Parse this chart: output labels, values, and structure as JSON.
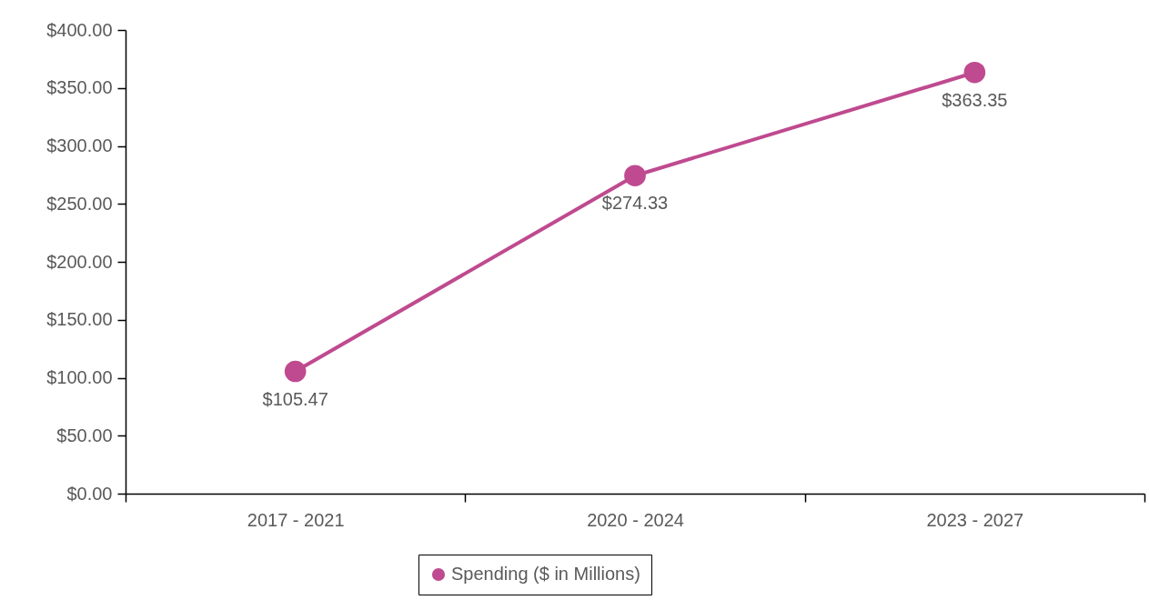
{
  "chart_data": {
    "type": "line",
    "categories": [
      "2017 - 2021",
      "2020 - 2024",
      "2023 - 2027"
    ],
    "series": [
      {
        "name": "Spending ($ in Millions)",
        "color": "#bf4a8f",
        "values": [
          105.47,
          274.33,
          363.35
        ],
        "value_labels": [
          "$105.47",
          "$274.33",
          "$363.35"
        ]
      }
    ],
    "ylim": [
      0,
      400
    ],
    "yticks": [
      {
        "value": 0,
        "label": "$0.00"
      },
      {
        "value": 50,
        "label": "$50.00"
      },
      {
        "value": 100,
        "label": "$100.00"
      },
      {
        "value": 150,
        "label": "$150.00"
      },
      {
        "value": 200,
        "label": "$200.00"
      },
      {
        "value": 250,
        "label": "$250.00"
      },
      {
        "value": 300,
        "label": "$300.00"
      },
      {
        "value": 350,
        "label": "$350.00"
      },
      {
        "value": 400,
        "label": "$400.00"
      }
    ],
    "legend": "bottom",
    "marker": "circle"
  }
}
